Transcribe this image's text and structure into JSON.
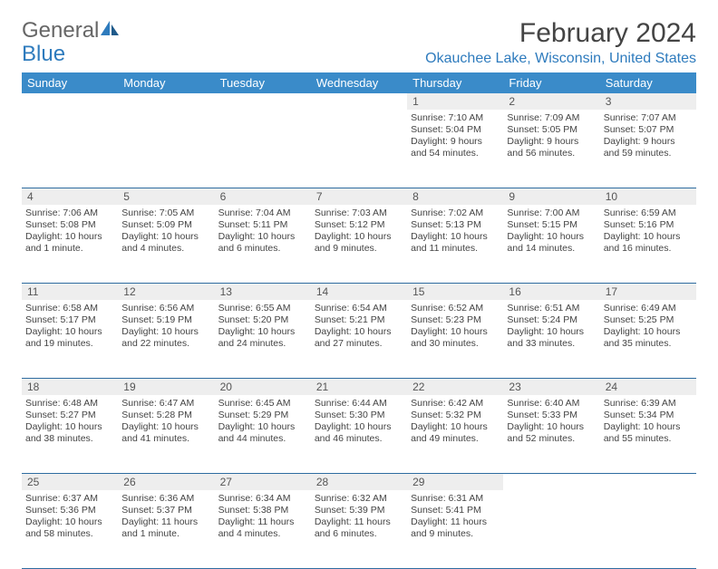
{
  "brand": {
    "part1": "General",
    "part2": "Blue"
  },
  "title": "February 2024",
  "location": "Okauchee Lake, Wisconsin, United States",
  "colors": {
    "header_bg": "#3a8bc9",
    "header_text": "#ffffff",
    "accent": "#2e7bbd",
    "daynum_bg": "#eeeeee",
    "text": "#444444",
    "rule": "#2e6ca0"
  },
  "day_headers": [
    "Sunday",
    "Monday",
    "Tuesday",
    "Wednesday",
    "Thursday",
    "Friday",
    "Saturday"
  ],
  "weeks": [
    {
      "nums": [
        "",
        "",
        "",
        "",
        "1",
        "2",
        "3"
      ],
      "cells": [
        {},
        {},
        {},
        {},
        {
          "sunrise": "Sunrise: 7:10 AM",
          "sunset": "Sunset: 5:04 PM",
          "daylight": "Daylight: 9 hours and 54 minutes."
        },
        {
          "sunrise": "Sunrise: 7:09 AM",
          "sunset": "Sunset: 5:05 PM",
          "daylight": "Daylight: 9 hours and 56 minutes."
        },
        {
          "sunrise": "Sunrise: 7:07 AM",
          "sunset": "Sunset: 5:07 PM",
          "daylight": "Daylight: 9 hours and 59 minutes."
        }
      ]
    },
    {
      "nums": [
        "4",
        "5",
        "6",
        "7",
        "8",
        "9",
        "10"
      ],
      "cells": [
        {
          "sunrise": "Sunrise: 7:06 AM",
          "sunset": "Sunset: 5:08 PM",
          "daylight": "Daylight: 10 hours and 1 minute."
        },
        {
          "sunrise": "Sunrise: 7:05 AM",
          "sunset": "Sunset: 5:09 PM",
          "daylight": "Daylight: 10 hours and 4 minutes."
        },
        {
          "sunrise": "Sunrise: 7:04 AM",
          "sunset": "Sunset: 5:11 PM",
          "daylight": "Daylight: 10 hours and 6 minutes."
        },
        {
          "sunrise": "Sunrise: 7:03 AM",
          "sunset": "Sunset: 5:12 PM",
          "daylight": "Daylight: 10 hours and 9 minutes."
        },
        {
          "sunrise": "Sunrise: 7:02 AM",
          "sunset": "Sunset: 5:13 PM",
          "daylight": "Daylight: 10 hours and 11 minutes."
        },
        {
          "sunrise": "Sunrise: 7:00 AM",
          "sunset": "Sunset: 5:15 PM",
          "daylight": "Daylight: 10 hours and 14 minutes."
        },
        {
          "sunrise": "Sunrise: 6:59 AM",
          "sunset": "Sunset: 5:16 PM",
          "daylight": "Daylight: 10 hours and 16 minutes."
        }
      ]
    },
    {
      "nums": [
        "11",
        "12",
        "13",
        "14",
        "15",
        "16",
        "17"
      ],
      "cells": [
        {
          "sunrise": "Sunrise: 6:58 AM",
          "sunset": "Sunset: 5:17 PM",
          "daylight": "Daylight: 10 hours and 19 minutes."
        },
        {
          "sunrise": "Sunrise: 6:56 AM",
          "sunset": "Sunset: 5:19 PM",
          "daylight": "Daylight: 10 hours and 22 minutes."
        },
        {
          "sunrise": "Sunrise: 6:55 AM",
          "sunset": "Sunset: 5:20 PM",
          "daylight": "Daylight: 10 hours and 24 minutes."
        },
        {
          "sunrise": "Sunrise: 6:54 AM",
          "sunset": "Sunset: 5:21 PM",
          "daylight": "Daylight: 10 hours and 27 minutes."
        },
        {
          "sunrise": "Sunrise: 6:52 AM",
          "sunset": "Sunset: 5:23 PM",
          "daylight": "Daylight: 10 hours and 30 minutes."
        },
        {
          "sunrise": "Sunrise: 6:51 AM",
          "sunset": "Sunset: 5:24 PM",
          "daylight": "Daylight: 10 hours and 33 minutes."
        },
        {
          "sunrise": "Sunrise: 6:49 AM",
          "sunset": "Sunset: 5:25 PM",
          "daylight": "Daylight: 10 hours and 35 minutes."
        }
      ]
    },
    {
      "nums": [
        "18",
        "19",
        "20",
        "21",
        "22",
        "23",
        "24"
      ],
      "cells": [
        {
          "sunrise": "Sunrise: 6:48 AM",
          "sunset": "Sunset: 5:27 PM",
          "daylight": "Daylight: 10 hours and 38 minutes."
        },
        {
          "sunrise": "Sunrise: 6:47 AM",
          "sunset": "Sunset: 5:28 PM",
          "daylight": "Daylight: 10 hours and 41 minutes."
        },
        {
          "sunrise": "Sunrise: 6:45 AM",
          "sunset": "Sunset: 5:29 PM",
          "daylight": "Daylight: 10 hours and 44 minutes."
        },
        {
          "sunrise": "Sunrise: 6:44 AM",
          "sunset": "Sunset: 5:30 PM",
          "daylight": "Daylight: 10 hours and 46 minutes."
        },
        {
          "sunrise": "Sunrise: 6:42 AM",
          "sunset": "Sunset: 5:32 PM",
          "daylight": "Daylight: 10 hours and 49 minutes."
        },
        {
          "sunrise": "Sunrise: 6:40 AM",
          "sunset": "Sunset: 5:33 PM",
          "daylight": "Daylight: 10 hours and 52 minutes."
        },
        {
          "sunrise": "Sunrise: 6:39 AM",
          "sunset": "Sunset: 5:34 PM",
          "daylight": "Daylight: 10 hours and 55 minutes."
        }
      ]
    },
    {
      "nums": [
        "25",
        "26",
        "27",
        "28",
        "29",
        "",
        ""
      ],
      "cells": [
        {
          "sunrise": "Sunrise: 6:37 AM",
          "sunset": "Sunset: 5:36 PM",
          "daylight": "Daylight: 10 hours and 58 minutes."
        },
        {
          "sunrise": "Sunrise: 6:36 AM",
          "sunset": "Sunset: 5:37 PM",
          "daylight": "Daylight: 11 hours and 1 minute."
        },
        {
          "sunrise": "Sunrise: 6:34 AM",
          "sunset": "Sunset: 5:38 PM",
          "daylight": "Daylight: 11 hours and 4 minutes."
        },
        {
          "sunrise": "Sunrise: 6:32 AM",
          "sunset": "Sunset: 5:39 PM",
          "daylight": "Daylight: 11 hours and 6 minutes."
        },
        {
          "sunrise": "Sunrise: 6:31 AM",
          "sunset": "Sunset: 5:41 PM",
          "daylight": "Daylight: 11 hours and 9 minutes."
        },
        {},
        {}
      ]
    }
  ]
}
